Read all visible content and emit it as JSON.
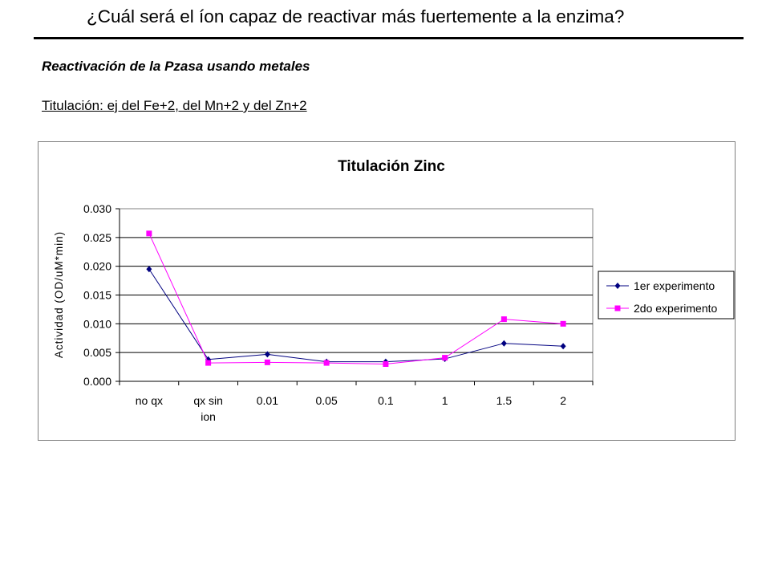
{
  "slide": {
    "title": "¿Cuál será el íon capaz de reactivar más fuertemente a la enzima?",
    "subtitle": "Reactivación de la Pzasa usando metales",
    "note": "Titulación: ej del Fe+2,  del Mn+2 y del Zn+2"
  },
  "chart_data": {
    "type": "line",
    "title": "Titulación Zinc",
    "xlabel": "",
    "ylabel": "Actividad (OD/uM*min)",
    "categories": [
      "no qx",
      "qx sin ion",
      "0.01",
      "0.05",
      "0.1",
      "1",
      "1.5",
      "2"
    ],
    "category_lines": [
      [
        "no qx"
      ],
      [
        "qx sin",
        "ion"
      ],
      [
        "0.01"
      ],
      [
        "0.05"
      ],
      [
        "0.1"
      ],
      [
        "1"
      ],
      [
        "1.5"
      ],
      [
        "2"
      ]
    ],
    "ylim": [
      0,
      0.03
    ],
    "yticks": [
      "0.000",
      "0.005",
      "0.010",
      "0.015",
      "0.020",
      "0.025",
      "0.030"
    ],
    "grid": true,
    "legend_position": "right",
    "series": [
      {
        "name": "1er experimento",
        "color": "#000080",
        "marker": "diamond",
        "values": [
          0.0195,
          0.0038,
          0.0047,
          0.0034,
          0.0034,
          0.0039,
          0.0066,
          0.0061
        ]
      },
      {
        "name": "2do experimento",
        "color": "#ff00ff",
        "marker": "square",
        "values": [
          0.0257,
          0.0032,
          0.0033,
          0.0032,
          0.003,
          0.0041,
          0.0108,
          0.01
        ]
      }
    ]
  }
}
